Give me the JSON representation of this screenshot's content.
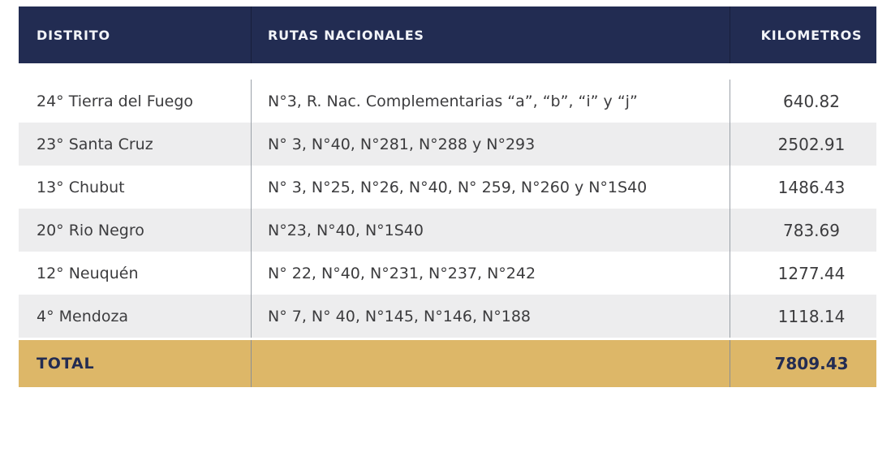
{
  "chart_data": {
    "type": "table",
    "columns": [
      "DISTRITO",
      "RUTAS NACIONALES",
      "KILOMETROS"
    ],
    "rows": [
      {
        "distrito": "24° Tierra del Fuego",
        "rutas": "N°3, R. Nac. Complementarias “a”, “b”, “i” y “j”",
        "kilometros": "640.82"
      },
      {
        "distrito": "23° Santa Cruz",
        "rutas": "N° 3, N°40, N°281, N°288 y N°293",
        "kilometros": "2502.91"
      },
      {
        "distrito": "13° Chubut",
        "rutas": "N° 3, N°25, N°26, N°40, N° 259, N°260 y N°1S40",
        "kilometros": "1486.43"
      },
      {
        "distrito": "20° Rio Negro",
        "rutas": "N°23, N°40, N°1S40",
        "kilometros": "783.69"
      },
      {
        "distrito": "12° Neuquén",
        "rutas": "N° 22, N°40, N°231, N°237, N°242",
        "kilometros": "1277.44"
      },
      {
        "distrito": "4° Mendoza",
        "rutas": "N° 7, N° 40, N°145, N°146, N°188",
        "kilometros": "1118.14"
      }
    ],
    "total": {
      "label": "TOTAL",
      "kilometros": "7809.43"
    },
    "layout": {
      "legend": "none",
      "grid": "column-dividers",
      "zebra_striping": true
    }
  },
  "colors": {
    "header_bg": "#222c52",
    "header_text": "#f2f4f8",
    "row_white": "#ffffff",
    "row_gray": "#ededee",
    "total_bg": "#ddb768",
    "total_text": "#232c52",
    "body_text": "#3c3c3e",
    "divider": "#9aa0a8"
  }
}
